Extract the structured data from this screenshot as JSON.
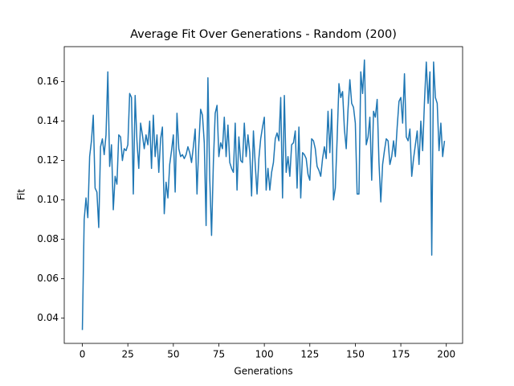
{
  "chart_data": {
    "type": "line",
    "title": "Average Fit Over Generations -  Random (200)",
    "x_label": "Generations",
    "y_label": "Fit",
    "x": [
      0,
      1,
      2,
      3,
      4,
      5,
      6,
      7,
      8,
      9,
      10,
      11,
      12,
      13,
      14,
      15,
      16,
      17,
      18,
      19,
      20,
      21,
      22,
      23,
      24,
      25,
      26,
      27,
      28,
      29,
      30,
      31,
      32,
      33,
      34,
      35,
      36,
      37,
      38,
      39,
      40,
      41,
      42,
      43,
      44,
      45,
      46,
      47,
      48,
      49,
      50,
      51,
      52,
      53,
      54,
      55,
      56,
      57,
      58,
      59,
      60,
      61,
      62,
      63,
      64,
      65,
      66,
      67,
      68,
      69,
      70,
      71,
      72,
      73,
      74,
      75,
      76,
      77,
      78,
      79,
      80,
      81,
      82,
      83,
      84,
      85,
      86,
      87,
      88,
      89,
      90,
      91,
      92,
      93,
      94,
      95,
      96,
      97,
      98,
      99,
      100,
      101,
      102,
      103,
      104,
      105,
      106,
      107,
      108,
      109,
      110,
      111,
      112,
      113,
      114,
      115,
      116,
      117,
      118,
      119,
      120,
      121,
      122,
      123,
      124,
      125,
      126,
      127,
      128,
      129,
      130,
      131,
      132,
      133,
      134,
      135,
      136,
      137,
      138,
      139,
      140,
      141,
      142,
      143,
      144,
      145,
      146,
      147,
      148,
      149,
      150,
      151,
      152,
      153,
      154,
      155,
      156,
      157,
      158,
      159,
      160,
      161,
      162,
      163,
      164,
      165,
      166,
      167,
      168,
      169,
      170,
      171,
      172,
      173,
      174,
      175,
      176,
      177,
      178,
      179,
      180,
      181,
      182,
      183,
      184,
      185,
      186,
      187,
      188,
      189,
      190,
      191,
      192,
      193,
      194,
      195,
      196,
      197,
      198,
      199
    ],
    "series": [
      {
        "color": "#1f77b4",
        "values": [
          0.034,
          0.09,
          0.101,
          0.091,
          0.122,
          0.13,
          0.143,
          0.106,
          0.104,
          0.086,
          0.127,
          0.131,
          0.123,
          0.133,
          0.165,
          0.117,
          0.128,
          0.095,
          0.112,
          0.108,
          0.133,
          0.132,
          0.12,
          0.126,
          0.125,
          0.128,
          0.154,
          0.152,
          0.103,
          0.153,
          0.13,
          0.116,
          0.139,
          0.133,
          0.126,
          0.133,
          0.128,
          0.14,
          0.116,
          0.143,
          0.122,
          0.133,
          0.114,
          0.131,
          0.137,
          0.093,
          0.109,
          0.101,
          0.118,
          0.125,
          0.133,
          0.104,
          0.144,
          0.126,
          0.122,
          0.123,
          0.121,
          0.123,
          0.127,
          0.124,
          0.119,
          0.127,
          0.136,
          0.103,
          0.128,
          0.146,
          0.143,
          0.129,
          0.087,
          0.162,
          0.111,
          0.082,
          0.119,
          0.144,
          0.148,
          0.122,
          0.129,
          0.126,
          0.142,
          0.122,
          0.138,
          0.119,
          0.116,
          0.114,
          0.139,
          0.105,
          0.132,
          0.12,
          0.119,
          0.139,
          0.122,
          0.133,
          0.124,
          0.102,
          0.135,
          0.118,
          0.103,
          0.121,
          0.131,
          0.137,
          0.142,
          0.105,
          0.116,
          0.105,
          0.114,
          0.119,
          0.131,
          0.134,
          0.13,
          0.152,
          0.101,
          0.153,
          0.114,
          0.122,
          0.112,
          0.128,
          0.129,
          0.135,
          0.106,
          0.137,
          0.101,
          0.124,
          0.123,
          0.121,
          0.113,
          0.11,
          0.131,
          0.13,
          0.126,
          0.117,
          0.115,
          0.112,
          0.121,
          0.127,
          0.121,
          0.145,
          0.124,
          0.146,
          0.1,
          0.106,
          0.131,
          0.159,
          0.152,
          0.155,
          0.136,
          0.126,
          0.146,
          0.161,
          0.149,
          0.147,
          0.139,
          0.103,
          0.103,
          0.165,
          0.154,
          0.171,
          0.128,
          0.132,
          0.142,
          0.11,
          0.145,
          0.142,
          0.151,
          0.119,
          0.099,
          0.118,
          0.125,
          0.131,
          0.13,
          0.118,
          0.122,
          0.13,
          0.122,
          0.137,
          0.15,
          0.152,
          0.139,
          0.164,
          0.132,
          0.13,
          0.136,
          0.112,
          0.121,
          0.128,
          0.135,
          0.118,
          0.14,
          0.125,
          0.15,
          0.17,
          0.149,
          0.165,
          0.072,
          0.17,
          0.152,
          0.149,
          0.125,
          0.139,
          0.122,
          0.13
        ]
      }
    ],
    "xlim": [
      -9.95,
      208.95
    ],
    "xticks": [
      0,
      25,
      50,
      75,
      100,
      125,
      150,
      175,
      200
    ],
    "ylim": [
      0.0272,
      0.1778
    ],
    "yticks": [
      0.04,
      0.06,
      0.08,
      {
        "value": 0.1,
        "label": "0.10"
      },
      0.12,
      0.14,
      0.16
    ],
    "grid": false
  }
}
